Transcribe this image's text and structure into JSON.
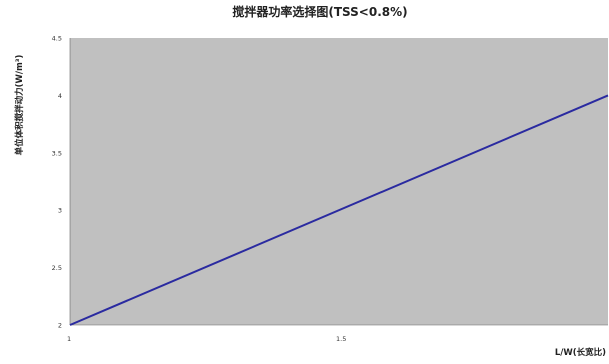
{
  "chart_data": {
    "type": "line",
    "title": "搅拌器功率选择图(TSS<0.8%)",
    "xlabel": "L/W(长宽比)",
    "ylabel": "单位体积搅拌动力(W/m³)",
    "xlim": [
      1,
      2
    ],
    "ylim": [
      2,
      4.5
    ],
    "x_ticks": [
      "1",
      "1.5"
    ],
    "y_ticks": [
      "2",
      "2.5",
      "3",
      "3.5",
      "4",
      "4.5"
    ],
    "grid": false,
    "legend": "none",
    "series": [
      {
        "color": "#2a2aa0",
        "x": [
          1,
          2
        ],
        "y": [
          2,
          4
        ]
      }
    ],
    "colors": {
      "plot_background": "#c0c0c0",
      "line": "#2a2aa0"
    }
  }
}
